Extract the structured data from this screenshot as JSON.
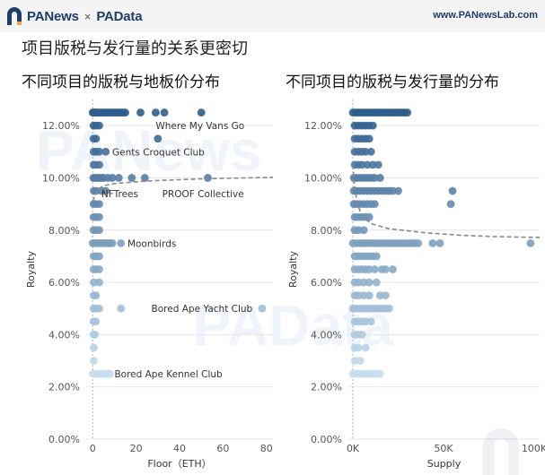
{
  "header": {
    "brand_primary": "PANews",
    "brand_separator": "×",
    "brand_secondary": "PAData",
    "site": "www.PANewsLab.com"
  },
  "page_title": "项目版税与发行量的关系更密切",
  "colors": {
    "brand": "#1f3d6b",
    "dark": "#2e5d8c",
    "light": "#c7def0",
    "trend": "#888888"
  },
  "chart_data": [
    {
      "type": "scatter",
      "title": "不同项目的版税与地板价分布",
      "xlabel": "Floor（ETH）",
      "ylabel": "Royalty",
      "xlim": [
        -3,
        83
      ],
      "ylim": [
        0.0,
        13.0
      ],
      "xticks": [
        {
          "v": 0,
          "t": "0"
        },
        {
          "v": 20,
          "t": "20"
        },
        {
          "v": 40,
          "t": "40"
        },
        {
          "v": 60,
          "t": "60"
        },
        {
          "v": 80,
          "t": "80"
        }
      ],
      "yticks": [
        {
          "v": 0,
          "t": "0.00%"
        },
        {
          "v": 2,
          "t": "2.00%"
        },
        {
          "v": 4,
          "t": "4.00%"
        },
        {
          "v": 6,
          "t": "6.00%"
        },
        {
          "v": 8,
          "t": "8.00%"
        },
        {
          "v": 10,
          "t": "10.00%"
        },
        {
          "v": 12,
          "t": "12.00%"
        }
      ],
      "grid": true,
      "trend": [
        [
          0,
          9.1
        ],
        [
          2,
          9.55
        ],
        [
          5,
          9.7
        ],
        [
          10,
          9.78
        ],
        [
          20,
          9.85
        ],
        [
          30,
          9.9
        ],
        [
          40,
          9.93
        ],
        [
          50,
          9.96
        ],
        [
          60,
          9.98
        ],
        [
          70,
          10.0
        ],
        [
          83,
          10.02
        ]
      ],
      "points": [
        [
          0,
          12.5
        ],
        [
          0.5,
          12.5
        ],
        [
          1,
          12.5
        ],
        [
          1.5,
          12.5
        ],
        [
          2,
          12.5
        ],
        [
          3,
          12.5
        ],
        [
          4,
          12.5
        ],
        [
          5,
          12.5
        ],
        [
          6,
          12.5
        ],
        [
          7,
          12.5
        ],
        [
          8,
          12.5
        ],
        [
          9,
          12.5
        ],
        [
          10,
          12.5
        ],
        [
          11,
          12.5
        ],
        [
          12,
          12.5
        ],
        [
          13,
          12.5
        ],
        [
          14,
          12.5
        ],
        [
          15,
          12.5
        ],
        [
          22,
          12.5
        ],
        [
          29,
          12.5
        ],
        [
          33,
          12.5
        ],
        [
          50,
          12.5
        ],
        [
          0.4,
          12.0
        ],
        [
          1.5,
          12.0
        ],
        [
          3,
          12.0
        ],
        [
          0.4,
          11.5
        ],
        [
          1.5,
          11.5
        ],
        [
          30,
          11.5
        ],
        [
          0.4,
          11.0
        ],
        [
          1.5,
          11.0
        ],
        [
          3,
          11.0
        ],
        [
          6,
          11.0
        ],
        [
          0.4,
          10.5
        ],
        [
          1.5,
          10.5
        ],
        [
          3,
          10.5
        ],
        [
          0.3,
          10.0
        ],
        [
          1,
          10.0
        ],
        [
          2,
          10.0
        ],
        [
          3,
          10.0
        ],
        [
          4,
          10.0
        ],
        [
          5,
          10.0
        ],
        [
          7,
          10.0
        ],
        [
          9,
          10.0
        ],
        [
          12,
          10.0
        ],
        [
          18,
          10.0
        ],
        [
          24,
          10.0
        ],
        [
          53,
          10.0
        ],
        [
          0.5,
          9.5
        ],
        [
          1.5,
          9.5
        ],
        [
          4,
          9.5
        ],
        [
          6,
          9.5
        ],
        [
          0.4,
          9.0
        ],
        [
          1.5,
          9.0
        ],
        [
          3,
          9.0
        ],
        [
          0.4,
          8.5
        ],
        [
          1.5,
          8.5
        ],
        [
          3,
          8.5
        ],
        [
          0.4,
          8.0
        ],
        [
          1.5,
          8.0
        ],
        [
          3,
          8.0
        ],
        [
          0,
          7.5
        ],
        [
          1,
          7.5
        ],
        [
          2,
          7.5
        ],
        [
          3,
          7.5
        ],
        [
          4,
          7.5
        ],
        [
          5,
          7.5
        ],
        [
          6,
          7.5
        ],
        [
          7,
          7.5
        ],
        [
          8,
          7.5
        ],
        [
          9,
          7.5
        ],
        [
          13,
          7.5
        ],
        [
          0.4,
          7.0
        ],
        [
          1.5,
          7.0
        ],
        [
          3,
          7.0
        ],
        [
          0.4,
          6.5
        ],
        [
          1.5,
          6.5
        ],
        [
          3,
          6.5
        ],
        [
          0.5,
          6.0
        ],
        [
          3,
          6.0
        ],
        [
          0.5,
          5.5
        ],
        [
          1.5,
          5.5
        ],
        [
          0.4,
          5.0
        ],
        [
          1.5,
          5.0
        ],
        [
          3,
          5.0
        ],
        [
          13,
          5.0
        ],
        [
          78,
          5.0
        ],
        [
          0.4,
          4.5
        ],
        [
          1.5,
          4.5
        ],
        [
          0.4,
          4.0
        ],
        [
          1,
          4.0
        ],
        [
          0.5,
          3.5
        ],
        [
          0.5,
          3.0
        ],
        [
          0,
          2.5
        ],
        [
          1,
          2.5
        ],
        [
          2,
          2.5
        ],
        [
          3,
          2.5
        ],
        [
          4,
          2.5
        ],
        [
          5,
          2.5
        ],
        [
          6,
          2.5
        ],
        [
          7,
          2.5
        ],
        [
          8,
          2.5
        ]
      ],
      "annotations": [
        {
          "text": "Where My Vans Go",
          "x": 29,
          "y": 12.0
        },
        {
          "text": "Gents Croquet Club",
          "x": 9,
          "y": 11.0
        },
        {
          "text": "NFTrees",
          "x": 4,
          "y": 9.4
        },
        {
          "text": "PROOF Collective",
          "x": 32,
          "y": 9.4
        },
        {
          "text": "Moonbirds",
          "x": 16,
          "y": 7.5
        },
        {
          "text": "Bored Ape Yacht Club",
          "x": 27,
          "y": 5.0
        },
        {
          "text": "Bored Ape Kennel Club",
          "x": 10,
          "y": 2.5
        }
      ]
    },
    {
      "type": "scatter",
      "title": "不同项目的版税与发行量的分布",
      "xlabel": "Supply",
      "ylabel": "Royalty",
      "xlim": [
        -2500,
        103000
      ],
      "ylim": [
        0.0,
        13.0
      ],
      "xticks": [
        {
          "v": 0,
          "t": "0K"
        },
        {
          "v": 50000,
          "t": "50K"
        },
        {
          "v": 100000,
          "t": "100K"
        }
      ],
      "yticks": [
        {
          "v": 0,
          "t": "0.00%"
        },
        {
          "v": 2,
          "t": "2.00%"
        },
        {
          "v": 4,
          "t": "4.00%"
        },
        {
          "v": 6,
          "t": "6.00%"
        },
        {
          "v": 8,
          "t": "8.00%"
        },
        {
          "v": 10,
          "t": "10.00%"
        },
        {
          "v": 12,
          "t": "12.00%"
        }
      ],
      "grid": true,
      "trend": [
        [
          0,
          10.5
        ],
        [
          1000,
          9.6
        ],
        [
          2500,
          9.0
        ],
        [
          5000,
          8.55
        ],
        [
          10000,
          8.25
        ],
        [
          20000,
          8.05
        ],
        [
          40000,
          7.9
        ],
        [
          60000,
          7.8
        ],
        [
          80000,
          7.75
        ],
        [
          103000,
          7.72
        ]
      ],
      "points": [
        [
          0,
          12.5
        ],
        [
          1500,
          12.5
        ],
        [
          3000,
          12.5
        ],
        [
          4500,
          12.5
        ],
        [
          6000,
          12.5
        ],
        [
          7500,
          12.5
        ],
        [
          9000,
          12.5
        ],
        [
          10500,
          12.5
        ],
        [
          12000,
          12.5
        ],
        [
          13500,
          12.5
        ],
        [
          15000,
          12.5
        ],
        [
          16500,
          12.5
        ],
        [
          18000,
          12.5
        ],
        [
          19500,
          12.5
        ],
        [
          21000,
          12.5
        ],
        [
          22500,
          12.5
        ],
        [
          24000,
          12.5
        ],
        [
          25500,
          12.5
        ],
        [
          27000,
          12.5
        ],
        [
          28500,
          12.5
        ],
        [
          30000,
          12.5
        ],
        [
          1000,
          12.0
        ],
        [
          3000,
          12.0
        ],
        [
          5000,
          12.0
        ],
        [
          7000,
          12.0
        ],
        [
          9000,
          12.0
        ],
        [
          11000,
          12.0
        ],
        [
          1000,
          11.5
        ],
        [
          3000,
          11.5
        ],
        [
          5000,
          11.5
        ],
        [
          7000,
          11.5
        ],
        [
          9000,
          11.5
        ],
        [
          1000,
          11.0
        ],
        [
          3000,
          11.0
        ],
        [
          5000,
          11.0
        ],
        [
          7000,
          11.0
        ],
        [
          10000,
          11.0
        ],
        [
          1000,
          10.5
        ],
        [
          3000,
          10.5
        ],
        [
          5000,
          10.5
        ],
        [
          8000,
          10.5
        ],
        [
          11000,
          10.5
        ],
        [
          14000,
          10.5
        ],
        [
          500,
          10.0
        ],
        [
          2000,
          10.0
        ],
        [
          4000,
          10.0
        ],
        [
          6000,
          10.0
        ],
        [
          8000,
          10.0
        ],
        [
          10000,
          10.0
        ],
        [
          12000,
          10.0
        ],
        [
          15000,
          10.0
        ],
        [
          500,
          9.5
        ],
        [
          2000,
          9.5
        ],
        [
          4000,
          9.5
        ],
        [
          6000,
          9.5
        ],
        [
          8000,
          9.5
        ],
        [
          10000,
          9.5
        ],
        [
          12000,
          9.5
        ],
        [
          14000,
          9.5
        ],
        [
          16000,
          9.5
        ],
        [
          18000,
          9.5
        ],
        [
          20000,
          9.5
        ],
        [
          22000,
          9.5
        ],
        [
          25000,
          9.5
        ],
        [
          55000,
          9.5
        ],
        [
          54000,
          9.0
        ],
        [
          500,
          9.0
        ],
        [
          2000,
          9.0
        ],
        [
          4000,
          9.0
        ],
        [
          6000,
          9.0
        ],
        [
          8000,
          9.0
        ],
        [
          10000,
          9.0
        ],
        [
          12000,
          9.0
        ],
        [
          1000,
          8.5
        ],
        [
          3000,
          8.5
        ],
        [
          5000,
          8.5
        ],
        [
          7000,
          8.5
        ],
        [
          9000,
          8.5
        ],
        [
          1000,
          8.0
        ],
        [
          3000,
          8.0
        ],
        [
          6000,
          8.0
        ],
        [
          0,
          7.5
        ],
        [
          2000,
          7.5
        ],
        [
          4000,
          7.5
        ],
        [
          6000,
          7.5
        ],
        [
          8000,
          7.5
        ],
        [
          10000,
          7.5
        ],
        [
          12000,
          7.5
        ],
        [
          14000,
          7.5
        ],
        [
          16000,
          7.5
        ],
        [
          18000,
          7.5
        ],
        [
          20000,
          7.5
        ],
        [
          22000,
          7.5
        ],
        [
          24000,
          7.5
        ],
        [
          26000,
          7.5
        ],
        [
          28000,
          7.5
        ],
        [
          30000,
          7.5
        ],
        [
          32000,
          7.5
        ],
        [
          34000,
          7.5
        ],
        [
          36000,
          7.5
        ],
        [
          44000,
          7.5
        ],
        [
          48000,
          7.5
        ],
        [
          98000,
          7.5
        ],
        [
          1000,
          7.0
        ],
        [
          3000,
          7.0
        ],
        [
          5000,
          7.0
        ],
        [
          7000,
          7.0
        ],
        [
          9000,
          7.0
        ],
        [
          11000,
          7.0
        ],
        [
          13000,
          7.0
        ],
        [
          1000,
          6.5
        ],
        [
          3000,
          6.5
        ],
        [
          5000,
          6.5
        ],
        [
          7000,
          6.5
        ],
        [
          9000,
          6.5
        ],
        [
          12000,
          6.5
        ],
        [
          16000,
          6.5
        ],
        [
          18000,
          6.5
        ],
        [
          22000,
          6.5
        ],
        [
          1000,
          6.0
        ],
        [
          3000,
          6.0
        ],
        [
          6000,
          6.0
        ],
        [
          9000,
          6.0
        ],
        [
          13000,
          6.0
        ],
        [
          1000,
          5.5
        ],
        [
          3000,
          5.5
        ],
        [
          6000,
          5.5
        ],
        [
          9000,
          5.5
        ],
        [
          15000,
          5.5
        ],
        [
          18000,
          5.5
        ],
        [
          0,
          5.0
        ],
        [
          2000,
          5.0
        ],
        [
          4000,
          5.0
        ],
        [
          6000,
          5.0
        ],
        [
          8000,
          5.0
        ],
        [
          10000,
          5.0
        ],
        [
          12000,
          5.0
        ],
        [
          14000,
          5.0
        ],
        [
          16000,
          5.0
        ],
        [
          18000,
          5.0
        ],
        [
          20000,
          5.0
        ],
        [
          1000,
          4.5
        ],
        [
          3000,
          4.5
        ],
        [
          5000,
          4.5
        ],
        [
          7000,
          4.5
        ],
        [
          10000,
          4.5
        ],
        [
          1000,
          4.0
        ],
        [
          3000,
          4.0
        ],
        [
          5000,
          4.0
        ],
        [
          1000,
          3.5
        ],
        [
          3000,
          3.5
        ],
        [
          7000,
          3.5
        ],
        [
          1000,
          3.0
        ],
        [
          4000,
          3.0
        ],
        [
          0,
          2.5
        ],
        [
          1500,
          2.5
        ],
        [
          3000,
          2.5
        ],
        [
          4500,
          2.5
        ],
        [
          6000,
          2.5
        ],
        [
          7500,
          2.5
        ],
        [
          9000,
          2.5
        ],
        [
          10500,
          2.5
        ],
        [
          12000,
          2.5
        ],
        [
          13500,
          2.5
        ],
        [
          15000,
          2.5
        ]
      ],
      "annotations": []
    }
  ]
}
